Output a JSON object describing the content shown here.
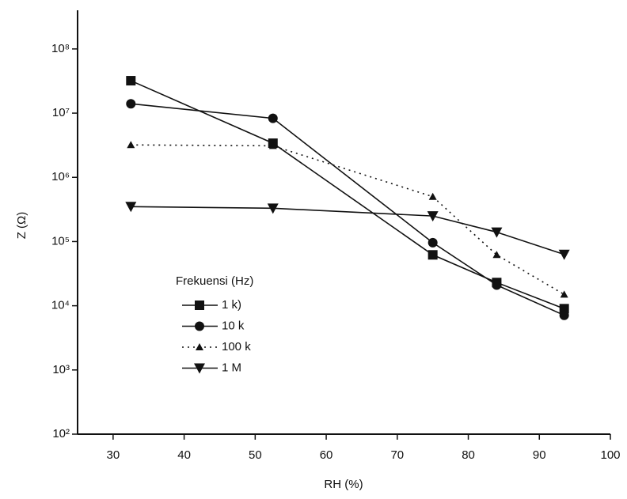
{
  "chart_data": {
    "type": "line",
    "x_label": "RH (%)",
    "y_label": "Z (Ω)",
    "x": [
      32.5,
      52.5,
      75,
      84,
      93.5
    ],
    "series": [
      {
        "name": "1 k)",
        "color": "#111111",
        "marker": "square",
        "dash": false,
        "values": [
          32000000,
          3400000,
          62000,
          23000,
          9000
        ]
      },
      {
        "name": "10 k",
        "color": "#111111",
        "marker": "circle",
        "dash": false,
        "values": [
          14000000,
          8300000,
          96000,
          21000,
          7100
        ]
      },
      {
        "name": "100 k",
        "color": "#111111",
        "marker": "triangle-up",
        "dash": true,
        "values": [
          3200000,
          3100000,
          500000,
          62000,
          15000
        ]
      },
      {
        "name": "1 M",
        "color": "#111111",
        "marker": "triangle-down",
        "dash": false,
        "values": [
          350000,
          330000,
          250000,
          140000,
          63000
        ]
      }
    ],
    "legend_title": "Frekuensi (Hz)",
    "xlim": [
      25,
      100
    ],
    "xticks": [
      30,
      40,
      50,
      60,
      70,
      80,
      90,
      100
    ],
    "ylim": [
      100,
      400000000
    ],
    "log_y": true,
    "yticks": [
      {
        "value": 100,
        "label": "10²"
      },
      {
        "value": 1000,
        "label": "10³"
      },
      {
        "value": 10000,
        "label": "10⁴"
      },
      {
        "value": 100000,
        "label": "10⁵"
      },
      {
        "value": 1000000,
        "label": "10⁶"
      },
      {
        "value": 10000000,
        "label": "10⁷"
      },
      {
        "value": 100000000,
        "label": "10⁸"
      }
    ]
  }
}
